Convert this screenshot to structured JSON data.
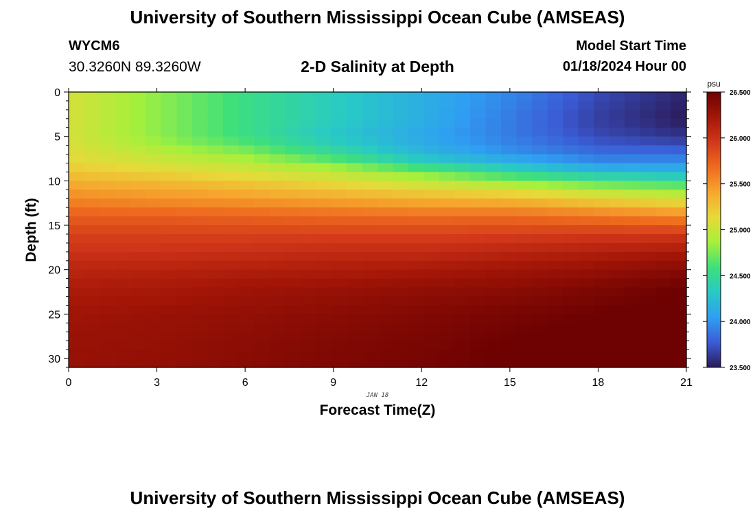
{
  "page": {
    "title": "University of Southern Mississippi Ocean Cube (AMSEAS)",
    "footer_title": "University of Southern Mississippi Ocean Cube (AMSEAS)",
    "station_id": "WYCM6",
    "coordinates": "30.3260N  89.3260W",
    "subtitle": "2-D Salinity at Depth",
    "model_start_label": "Model Start Time",
    "model_start_value": "01/18/2024 Hour 00"
  },
  "chart_data": {
    "type": "heatmap",
    "title": "2-D Salinity at Depth",
    "xlabel": "Forecast Time(Z)",
    "ylabel": "Depth (ft)",
    "date_label": "JAN 18",
    "xlim": [
      0,
      21
    ],
    "ylim": [
      0,
      31
    ],
    "y_inverted": true,
    "x_ticks": [
      0,
      3,
      6,
      9,
      12,
      15,
      18,
      21
    ],
    "y_ticks": [
      0,
      5,
      10,
      15,
      20,
      25,
      30
    ],
    "colorbar": {
      "unit": "psu",
      "min": 23.5,
      "max": 26.5,
      "ticks": [
        "26.500",
        "26.000",
        "25.500",
        "25.000",
        "24.500",
        "24.000",
        "23.500"
      ],
      "colors": [
        "#2b1a5a",
        "#3b5cd6",
        "#2f9ff2",
        "#28c9c6",
        "#3fe07a",
        "#a7f03b",
        "#e8d93a",
        "#f6a72e",
        "#ee6b1e",
        "#d2371a",
        "#a41607",
        "#6e0202"
      ]
    },
    "salinity_profiles": {
      "depths_ft": [
        0,
        3,
        5,
        7,
        8,
        9,
        10,
        11,
        12,
        13,
        14,
        16,
        18,
        20,
        22,
        25,
        28,
        31
      ],
      "times_h": [
        0,
        3,
        6,
        9,
        12,
        15,
        18,
        21
      ],
      "values_psu": [
        [
          25.05,
          24.8,
          24.55,
          24.35,
          24.15,
          23.95,
          23.7,
          23.55
        ],
        [
          25.05,
          24.8,
          24.55,
          24.35,
          24.15,
          23.9,
          23.65,
          23.5
        ],
        [
          25.05,
          24.8,
          24.55,
          24.3,
          24.1,
          23.9,
          23.7,
          23.6
        ],
        [
          25.1,
          24.95,
          24.8,
          24.5,
          24.2,
          24.0,
          23.85,
          23.85
        ],
        [
          25.15,
          25.05,
          24.95,
          24.75,
          24.4,
          24.2,
          24.0,
          24.0
        ],
        [
          25.25,
          25.15,
          25.05,
          24.95,
          24.75,
          24.45,
          24.25,
          24.2
        ],
        [
          25.35,
          25.3,
          25.2,
          25.1,
          24.95,
          24.8,
          24.6,
          24.5
        ],
        [
          25.45,
          25.4,
          25.35,
          25.25,
          25.15,
          25.05,
          24.9,
          24.8
        ],
        [
          25.55,
          25.5,
          25.45,
          25.4,
          25.35,
          25.3,
          25.15,
          25.05
        ],
        [
          25.65,
          25.62,
          25.6,
          25.55,
          25.5,
          25.5,
          25.4,
          25.3
        ],
        [
          25.75,
          25.75,
          25.72,
          25.7,
          25.68,
          25.68,
          25.62,
          25.55
        ],
        [
          25.9,
          25.9,
          25.9,
          25.9,
          25.9,
          25.92,
          25.95,
          25.95
        ],
        [
          26.0,
          26.0,
          26.02,
          26.05,
          26.05,
          26.1,
          26.15,
          26.2
        ],
        [
          26.1,
          26.12,
          26.15,
          26.17,
          26.2,
          26.25,
          26.3,
          26.38
        ],
        [
          26.18,
          26.2,
          26.25,
          26.28,
          26.32,
          26.35,
          26.42,
          26.5
        ],
        [
          26.25,
          26.28,
          26.32,
          26.36,
          26.4,
          26.45,
          26.5,
          26.55
        ],
        [
          26.28,
          26.3,
          26.35,
          26.4,
          26.44,
          26.5,
          26.55,
          26.6
        ],
        [
          26.3,
          26.32,
          26.37,
          26.42,
          26.46,
          26.52,
          26.58,
          26.62
        ]
      ]
    }
  }
}
